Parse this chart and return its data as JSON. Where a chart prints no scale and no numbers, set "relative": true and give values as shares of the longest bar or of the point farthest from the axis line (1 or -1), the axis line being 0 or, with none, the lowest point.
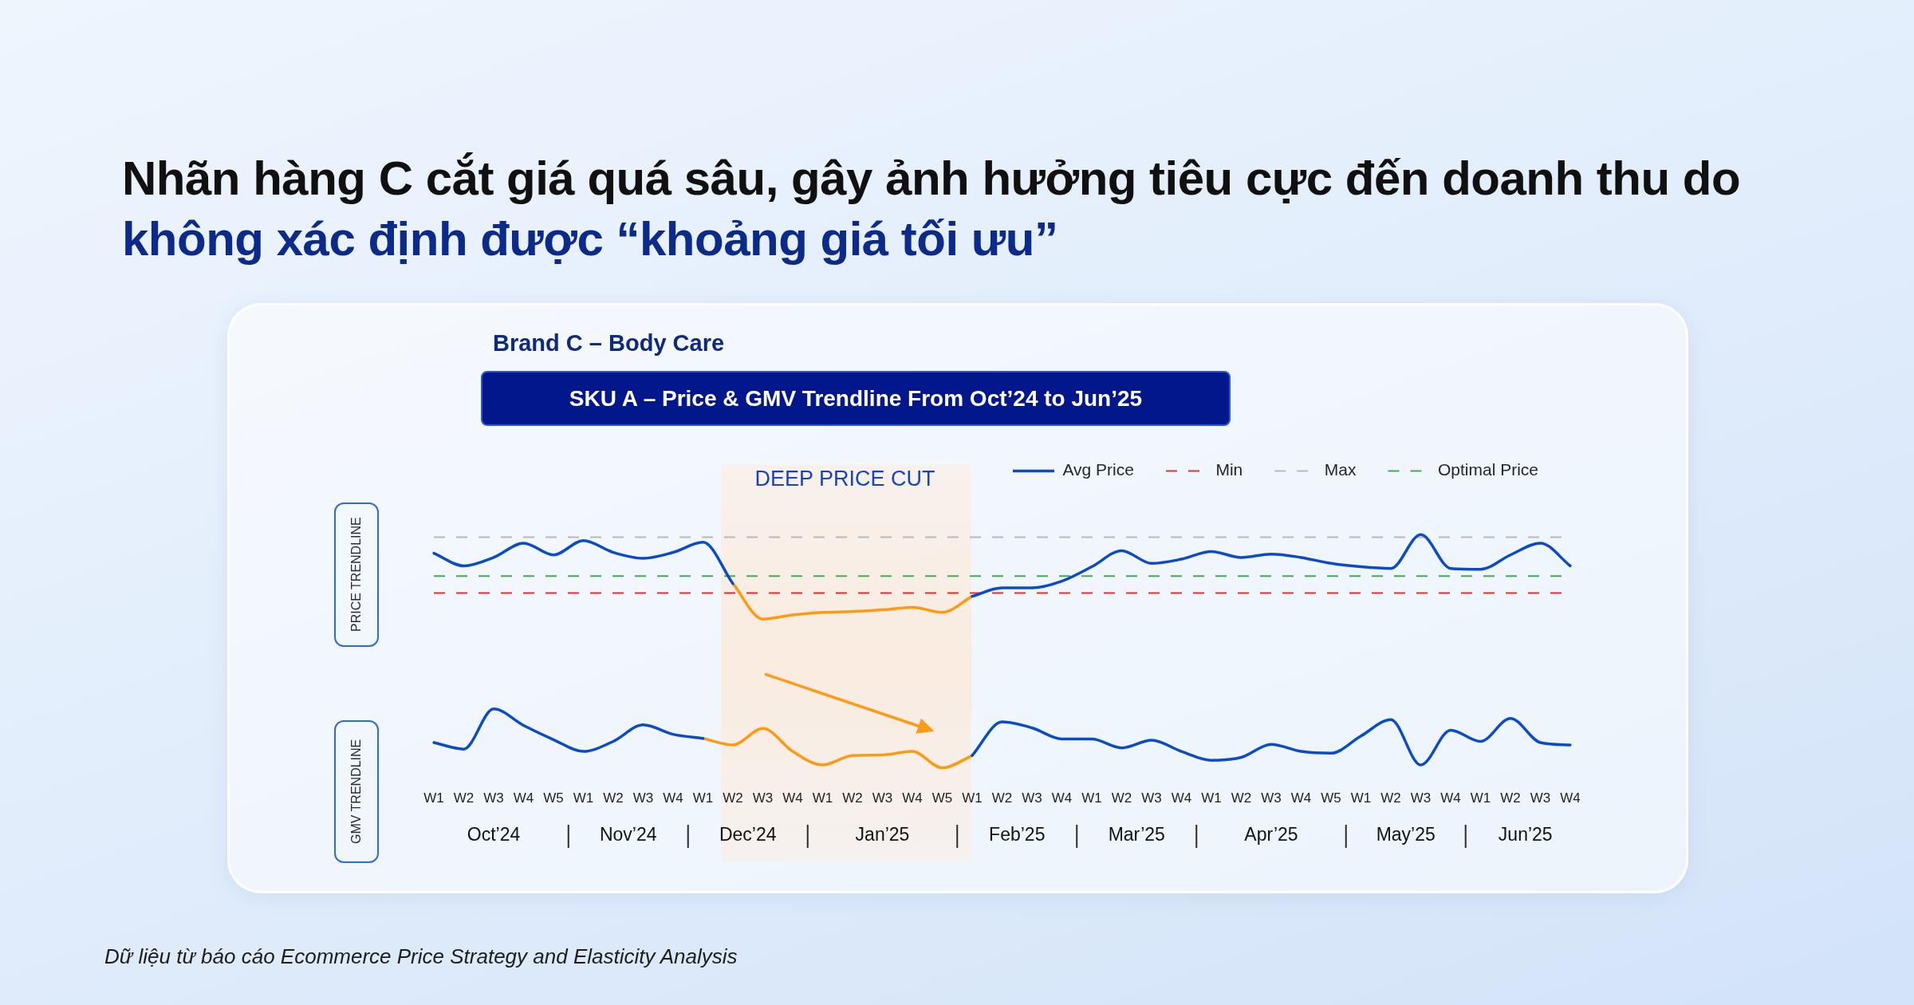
{
  "chart_data": [
    {
      "type": "line",
      "title": "Nhãn hàng C cắt giá quá sâu, gây ảnh hưởng tiêu cực đến doanh thu do",
      "subtitle": "không xác định được “khoảng giá tối ưu”",
      "annotations": [
        "Brand C – Body Care",
        "SKU A – Price & GMV Trendline From Oct’24 to Jun’25",
        "DEEP PRICE CUT"
      ],
      "ylabel": "PRICE TRENDLINE",
      "relative": true,
      "tick_labels": false,
      "legend": "top right",
      "marker": "none",
      "line_style": "solid",
      "categories": [
        null,
        null,
        null,
        null,
        null,
        null,
        null,
        null,
        null,
        null,
        null,
        null,
        null,
        null,
        null,
        null,
        null,
        null,
        null,
        null,
        null,
        null,
        null,
        null,
        null,
        null,
        null,
        null,
        null,
        null,
        null,
        null,
        null,
        null,
        null,
        null,
        null,
        null,
        null
      ],
      "series": [
        {
          "name": "Avg Price",
          "color": "#0b4cc6",
          "values": [
            0.78,
            0.63,
            0.73,
            0.9,
            0.76,
            0.93,
            0.79,
            0.72,
            0.79,
            0.91,
            0.42,
            null,
            null,
            null,
            null,
            null,
            null,
            null,
            0.27,
            0.37,
            0.37,
            0.45,
            0.62,
            0.81,
            0.66,
            0.71,
            0.8,
            0.73,
            0.77,
            0.73,
            0.66,
            0.62,
            0.6,
            1,
            0.6,
            0.59,
            0.76,
            0.9,
            0.63
          ]
        },
        {
          "color": "#fd9a12",
          "values": [
            null,
            null,
            null,
            null,
            null,
            null,
            null,
            null,
            null,
            null,
            0.42,
            0,
            0.05,
            0.08,
            0.09,
            0.11,
            0.14,
            0.08,
            0.27,
            null,
            null,
            null,
            null,
            null,
            null,
            null,
            null,
            null,
            null,
            null,
            null,
            null,
            null,
            null,
            null,
            null,
            null,
            null,
            null
          ]
        }
      ],
      "ref_lines": [
        {
          "axis": "y",
          "value": 0.31,
          "label": "Min",
          "color": "#e0302c",
          "line_style": "dashed"
        },
        {
          "axis": "y",
          "value": 0.97,
          "label": "Max",
          "color": "#b8b8b8",
          "line_style": "dashed"
        },
        {
          "axis": "y",
          "value": 0.51,
          "label": "Optimal Price",
          "color": "#3bb04a",
          "line_style": "dashed"
        }
      ]
    },
    {
      "type": "line",
      "ylabel": "GMV TRENDLINE",
      "relative": true,
      "tick_labels": "x",
      "marker": "none",
      "line_style": "solid",
      "annotations": [
        "Oct’24",
        "Nov’24",
        "Dec’24",
        "Jan’25",
        "Feb’25",
        "Mar’25",
        "Apr’25",
        "May’25",
        "Jun’25",
        "Dữ liệu từ báo cáo Ecommerce Price Strategy and Elasticity Analysis"
      ],
      "categories": [
        "W1",
        "W2",
        "W3",
        "W4",
        "W5",
        "W1",
        "W2",
        "W3",
        "W4",
        "W1",
        "W2",
        "W3",
        "W4",
        "W1",
        "W2",
        "W3",
        "W4",
        "W5",
        "W1",
        "W2",
        "W3",
        "W4",
        "W1",
        "W2",
        "W3",
        "W4",
        "W1",
        "W2",
        "W3",
        "W4",
        "W5",
        "W1",
        "W2",
        "W3",
        "W4",
        "W1",
        "W2",
        "W3",
        "W4"
      ],
      "series": [
        {
          "color": "#0b4cc6",
          "values": [
            0.43,
            0.32,
            1,
            0.72,
            0.48,
            0.28,
            0.45,
            0.73,
            0.57,
            0.5,
            null,
            null,
            null,
            null,
            null,
            null,
            null,
            null,
            0.21,
            0.78,
            0.68,
            0.49,
            0.49,
            0.34,
            0.47,
            0.28,
            0.13,
            0.18,
            0.4,
            0.28,
            0.25,
            0.54,
            0.82,
            0.05,
            0.64,
            0.45,
            0.84,
            0.43,
            0.39
          ]
        },
        {
          "color": "#fd9a12",
          "values": [
            null,
            null,
            null,
            null,
            null,
            null,
            null,
            null,
            null,
            0.5,
            0.39,
            0.67,
            0.28,
            0.05,
            0.21,
            0.22,
            0.28,
            0,
            0.21,
            null,
            null,
            null,
            null,
            null,
            null,
            null,
            null,
            null,
            null,
            null,
            null,
            null,
            null,
            null,
            null,
            null,
            null,
            null,
            null
          ]
        }
      ]
    }
  ]
}
